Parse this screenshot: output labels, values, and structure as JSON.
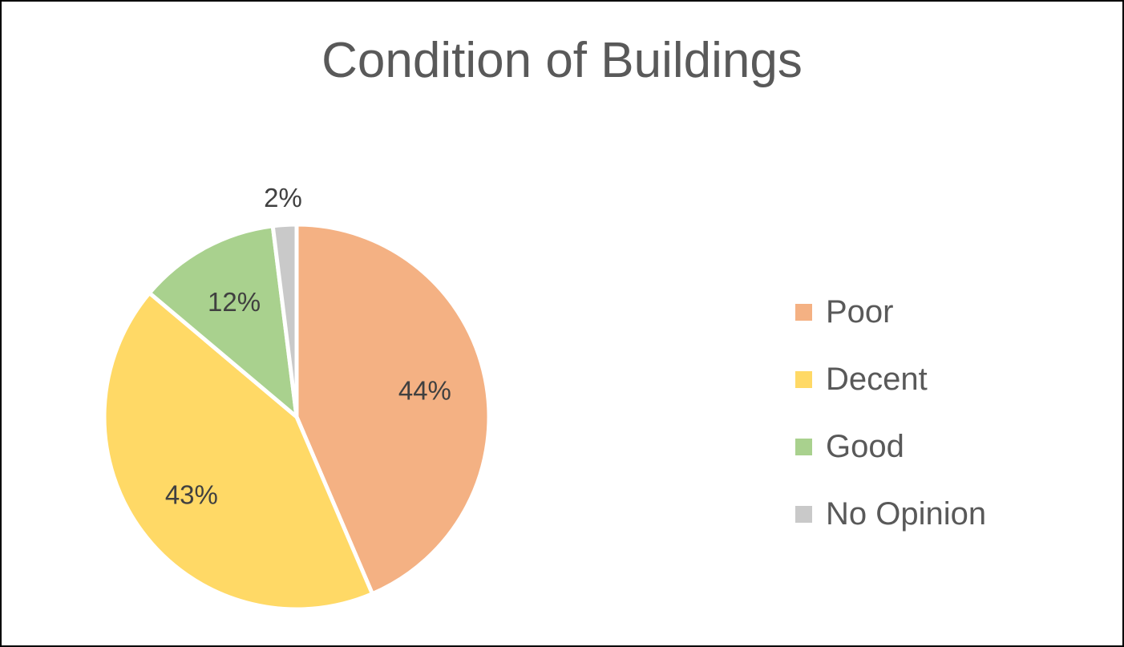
{
  "chart_data": {
    "type": "pie",
    "title": "Condition of Buildings",
    "categories": [
      "Poor",
      "Decent",
      "Good",
      "No Opinion"
    ],
    "values": [
      44,
      43,
      12,
      2
    ],
    "data_labels": [
      "44%",
      "43%",
      "12%",
      "2%"
    ],
    "colors": [
      "#F4B183",
      "#FFD966",
      "#A9D18E",
      "#C9C9C9"
    ],
    "legend_position": "right"
  }
}
